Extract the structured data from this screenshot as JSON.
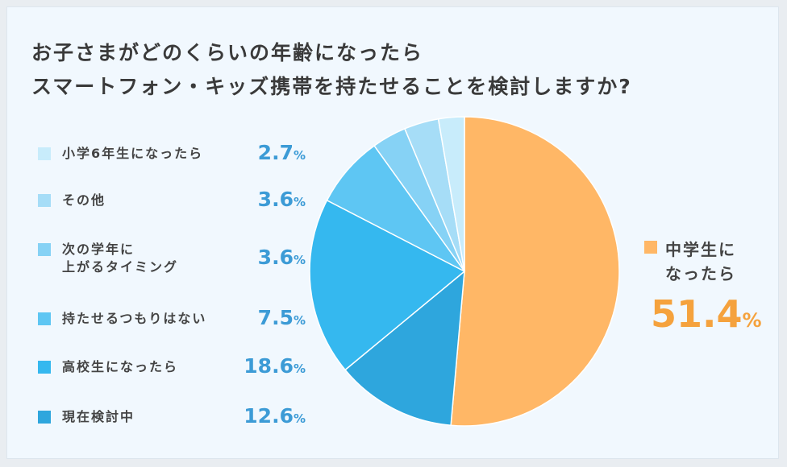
{
  "chart_data": {
    "type": "pie",
    "title_lines": [
      "お子さまがどのくらいの年齢になったら",
      "スマートフォン・キッズ携帯を持たせることを検討しますか?"
    ],
    "slices": [
      {
        "label": "中学生になったら",
        "label_lines": [
          "中学生に",
          "なったら"
        ],
        "value": 51.4,
        "value_text": "51.4",
        "color": "#ffb766"
      },
      {
        "label": "現在検討中",
        "label_lines": [
          "現在検討中"
        ],
        "value": 12.6,
        "value_text": "12.6",
        "color": "#2ea6dd"
      },
      {
        "label": "高校生になったら",
        "label_lines": [
          "高校生になったら"
        ],
        "value": 18.6,
        "value_text": "18.6",
        "color": "#35b8ef"
      },
      {
        "label": "持たせるつもりはない",
        "label_lines": [
          "持たせるつもりはない"
        ],
        "value": 7.5,
        "value_text": "7.5",
        "color": "#5ec6f3"
      },
      {
        "label": "次の学年に上がるタイミング",
        "label_lines": [
          "次の学年に",
          "上がるタイミング"
        ],
        "value": 3.6,
        "value_text": "3.6",
        "color": "#86d2f5"
      },
      {
        "label": "その他",
        "label_lines": [
          "その他"
        ],
        "value": 3.6,
        "value_text": "3.6",
        "color": "#a6ddf7"
      },
      {
        "label": "小学6年生になったら",
        "label_lines": [
          "小学6年生になったら"
        ],
        "value": 2.7,
        "value_text": "2.7",
        "color": "#c8ecfb"
      }
    ],
    "unit": "%",
    "legend_order": [
      6,
      5,
      4,
      3,
      2,
      1
    ],
    "legend_placement": "left",
    "callout_slice": 0
  }
}
